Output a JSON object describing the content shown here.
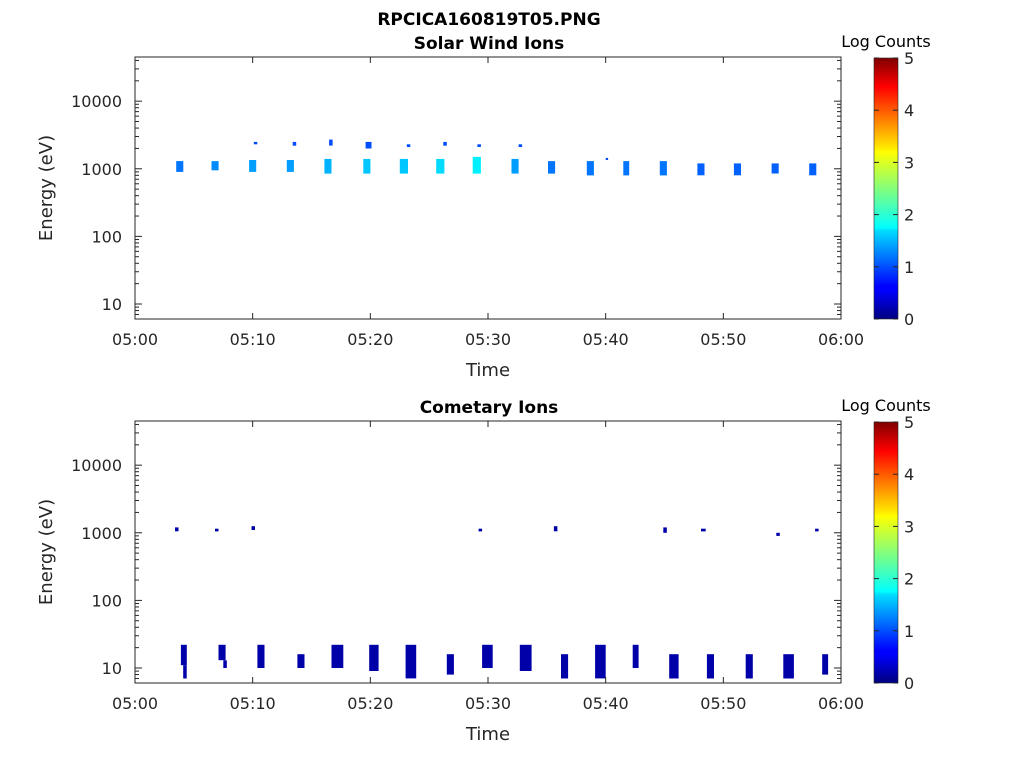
{
  "figure_title": "RPCICA160819T05.PNG",
  "chart_data": [
    {
      "type": "heatmap",
      "title": "Solar Wind Ions",
      "xlabel": "Time",
      "ylabel": "Energy (eV)",
      "xticks": [
        "05:00",
        "05:10",
        "05:20",
        "05:30",
        "05:40",
        "05:50",
        "06:00"
      ],
      "xlim_minutes": [
        0,
        60
      ],
      "yscale": "log",
      "ylim": [
        6,
        45000
      ],
      "yticks": [
        10,
        100,
        1000,
        10000
      ],
      "ytick_labels": [
        "10",
        "100",
        "1000",
        "10000"
      ],
      "colorbar": {
        "label": "Log Counts",
        "min": 0,
        "max": 5,
        "ticks": [
          "0",
          "1",
          "2",
          "3",
          "4",
          "5"
        ],
        "colormap": "jet"
      },
      "cells": [
        {
          "t": 3.5,
          "dt": 0.6,
          "e_lo": 900,
          "e_hi": 1300,
          "v": 1.2
        },
        {
          "t": 6.5,
          "dt": 0.6,
          "e_lo": 950,
          "e_hi": 1300,
          "v": 1.3
        },
        {
          "t": 9.7,
          "dt": 0.6,
          "e_lo": 900,
          "e_hi": 1350,
          "v": 1.4
        },
        {
          "t": 10.1,
          "dt": 0.3,
          "e_lo": 2300,
          "e_hi": 2500,
          "v": 1.0
        },
        {
          "t": 12.9,
          "dt": 0.6,
          "e_lo": 900,
          "e_hi": 1350,
          "v": 1.4
        },
        {
          "t": 13.4,
          "dt": 0.3,
          "e_lo": 2200,
          "e_hi": 2500,
          "v": 1.0
        },
        {
          "t": 16.1,
          "dt": 0.6,
          "e_lo": 850,
          "e_hi": 1400,
          "v": 1.5
        },
        {
          "t": 16.5,
          "dt": 0.3,
          "e_lo": 2200,
          "e_hi": 2700,
          "v": 1.0
        },
        {
          "t": 19.4,
          "dt": 0.6,
          "e_lo": 850,
          "e_hi": 1400,
          "v": 1.6
        },
        {
          "t": 19.6,
          "dt": 0.5,
          "e_lo": 2000,
          "e_hi": 2500,
          "v": 1.0
        },
        {
          "t": 22.5,
          "dt": 0.7,
          "e_lo": 850,
          "e_hi": 1400,
          "v": 1.6
        },
        {
          "t": 23.1,
          "dt": 0.3,
          "e_lo": 2100,
          "e_hi": 2300,
          "v": 1.0
        },
        {
          "t": 25.6,
          "dt": 0.7,
          "e_lo": 850,
          "e_hi": 1400,
          "v": 1.7
        },
        {
          "t": 26.2,
          "dt": 0.3,
          "e_lo": 2200,
          "e_hi": 2500,
          "v": 1.0
        },
        {
          "t": 28.7,
          "dt": 0.7,
          "e_lo": 850,
          "e_hi": 1500,
          "v": 1.8
        },
        {
          "t": 29.1,
          "dt": 0.3,
          "e_lo": 2100,
          "e_hi": 2300,
          "v": 1.0
        },
        {
          "t": 32.0,
          "dt": 0.6,
          "e_lo": 850,
          "e_hi": 1400,
          "v": 1.4
        },
        {
          "t": 32.6,
          "dt": 0.3,
          "e_lo": 2100,
          "e_hi": 2300,
          "v": 1.0
        },
        {
          "t": 35.1,
          "dt": 0.6,
          "e_lo": 850,
          "e_hi": 1300,
          "v": 1.2
        },
        {
          "t": 38.4,
          "dt": 0.6,
          "e_lo": 800,
          "e_hi": 1300,
          "v": 1.2
        },
        {
          "t": 40.0,
          "dt": 0.2,
          "e_lo": 1350,
          "e_hi": 1450,
          "v": 1.0
        },
        {
          "t": 41.5,
          "dt": 0.5,
          "e_lo": 800,
          "e_hi": 1300,
          "v": 1.2
        },
        {
          "t": 44.6,
          "dt": 0.6,
          "e_lo": 800,
          "e_hi": 1300,
          "v": 1.2
        },
        {
          "t": 47.8,
          "dt": 0.6,
          "e_lo": 800,
          "e_hi": 1200,
          "v": 1.1
        },
        {
          "t": 50.9,
          "dt": 0.6,
          "e_lo": 800,
          "e_hi": 1200,
          "v": 1.1
        },
        {
          "t": 54.1,
          "dt": 0.6,
          "e_lo": 850,
          "e_hi": 1200,
          "v": 1.1
        },
        {
          "t": 57.3,
          "dt": 0.6,
          "e_lo": 800,
          "e_hi": 1200,
          "v": 1.1
        }
      ]
    },
    {
      "type": "heatmap",
      "title": "Cometary Ions",
      "xlabel": "Time",
      "ylabel": "Energy (eV)",
      "xticks": [
        "05:00",
        "05:10",
        "05:20",
        "05:30",
        "05:40",
        "05:50",
        "06:00"
      ],
      "xlim_minutes": [
        0,
        60
      ],
      "yscale": "log",
      "ylim": [
        6,
        45000
      ],
      "yticks": [
        10,
        100,
        1000,
        10000
      ],
      "ytick_labels": [
        "10",
        "100",
        "1000",
        "10000"
      ],
      "colorbar": {
        "label": "Log Counts",
        "min": 0,
        "max": 5,
        "ticks": [
          "0",
          "1",
          "2",
          "3",
          "4",
          "5"
        ],
        "colormap": "jet"
      },
      "cells": [
        {
          "t": 3.4,
          "dt": 0.3,
          "e_lo": 1050,
          "e_hi": 1200,
          "v": 0.2
        },
        {
          "t": 6.8,
          "dt": 0.3,
          "e_lo": 1050,
          "e_hi": 1150,
          "v": 0.2
        },
        {
          "t": 9.9,
          "dt": 0.3,
          "e_lo": 1100,
          "e_hi": 1250,
          "v": 0.2
        },
        {
          "t": 29.2,
          "dt": 0.3,
          "e_lo": 1050,
          "e_hi": 1150,
          "v": 0.2
        },
        {
          "t": 35.6,
          "dt": 0.3,
          "e_lo": 1050,
          "e_hi": 1250,
          "v": 0.2
        },
        {
          "t": 44.9,
          "dt": 0.3,
          "e_lo": 1000,
          "e_hi": 1200,
          "v": 0.2
        },
        {
          "t": 48.1,
          "dt": 0.4,
          "e_lo": 1050,
          "e_hi": 1150,
          "v": 0.2
        },
        {
          "t": 54.5,
          "dt": 0.3,
          "e_lo": 900,
          "e_hi": 1000,
          "v": 0.2
        },
        {
          "t": 57.8,
          "dt": 0.3,
          "e_lo": 1050,
          "e_hi": 1150,
          "v": 0.2
        },
        {
          "t": 3.9,
          "dt": 0.5,
          "e_lo": 11,
          "e_hi": 22,
          "v": 0.2
        },
        {
          "t": 4.1,
          "dt": 0.3,
          "e_lo": 7,
          "e_hi": 11,
          "v": 0.2
        },
        {
          "t": 7.1,
          "dt": 0.6,
          "e_lo": 13,
          "e_hi": 22,
          "v": 0.2
        },
        {
          "t": 7.5,
          "dt": 0.3,
          "e_lo": 10,
          "e_hi": 13,
          "v": 0.2
        },
        {
          "t": 10.4,
          "dt": 0.6,
          "e_lo": 10,
          "e_hi": 22,
          "v": 0.2
        },
        {
          "t": 13.8,
          "dt": 0.6,
          "e_lo": 10,
          "e_hi": 16,
          "v": 0.2
        },
        {
          "t": 16.7,
          "dt": 1.0,
          "e_lo": 10,
          "e_hi": 22,
          "v": 0.2
        },
        {
          "t": 19.9,
          "dt": 0.8,
          "e_lo": 9,
          "e_hi": 22,
          "v": 0.2
        },
        {
          "t": 23.0,
          "dt": 0.9,
          "e_lo": 7,
          "e_hi": 22,
          "v": 0.2
        },
        {
          "t": 26.5,
          "dt": 0.6,
          "e_lo": 8,
          "e_hi": 16,
          "v": 0.2
        },
        {
          "t": 29.5,
          "dt": 0.9,
          "e_lo": 10,
          "e_hi": 22,
          "v": 0.2
        },
        {
          "t": 32.7,
          "dt": 1.0,
          "e_lo": 9,
          "e_hi": 22,
          "v": 0.2
        },
        {
          "t": 36.2,
          "dt": 0.6,
          "e_lo": 7,
          "e_hi": 16,
          "v": 0.2
        },
        {
          "t": 39.1,
          "dt": 0.9,
          "e_lo": 7,
          "e_hi": 22,
          "v": 0.2
        },
        {
          "t": 42.3,
          "dt": 0.5,
          "e_lo": 10,
          "e_hi": 22,
          "v": 0.2
        },
        {
          "t": 45.4,
          "dt": 0.8,
          "e_lo": 7,
          "e_hi": 16,
          "v": 0.2
        },
        {
          "t": 48.6,
          "dt": 0.6,
          "e_lo": 7,
          "e_hi": 16,
          "v": 0.2
        },
        {
          "t": 51.9,
          "dt": 0.6,
          "e_lo": 7,
          "e_hi": 16,
          "v": 0.2
        },
        {
          "t": 55.1,
          "dt": 0.9,
          "e_lo": 7,
          "e_hi": 16,
          "v": 0.2
        },
        {
          "t": 58.4,
          "dt": 0.5,
          "e_lo": 8,
          "e_hi": 16,
          "v": 0.2
        }
      ]
    }
  ]
}
